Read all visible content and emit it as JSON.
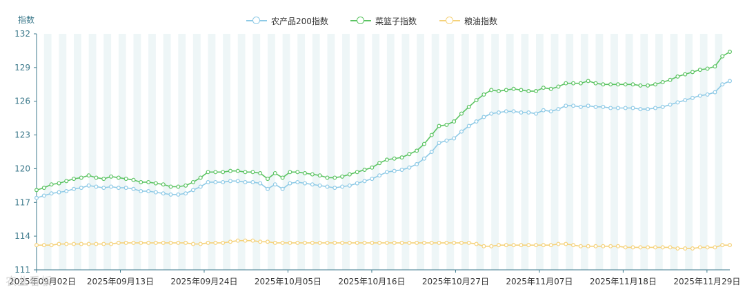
{
  "chart_data": {
    "type": "line",
    "title": "",
    "ylabel": "指数",
    "xlabel": "",
    "ylim": [
      111,
      132
    ],
    "yticks": [
      111,
      114,
      117,
      120,
      123,
      126,
      129,
      132
    ],
    "x_start": "2025年09月02日",
    "x_end": "2025年12月02日",
    "xtick_labels": [
      "2025年09月02日",
      "2025年09月13日",
      "2025年09月24日",
      "2025年10月05日",
      "2025年10月16日",
      "2025年10月27日",
      "2025年11月07日",
      "2025年11月18日",
      "2025年11月29日"
    ],
    "grid": "alternating vertical bands",
    "legend_position": "top-center",
    "series": [
      {
        "name": "农产品200指数",
        "color": "#8ecae6",
        "values": [
          117.4,
          117.6,
          117.8,
          117.9,
          118.0,
          118.2,
          118.3,
          118.5,
          118.4,
          118.3,
          118.4,
          118.3,
          118.3,
          118.2,
          118.0,
          118.0,
          117.9,
          117.8,
          117.7,
          117.7,
          117.8,
          118.1,
          118.4,
          118.8,
          118.8,
          118.8,
          118.9,
          118.9,
          118.8,
          118.8,
          118.7,
          118.2,
          118.6,
          118.2,
          118.7,
          118.8,
          118.7,
          118.6,
          118.5,
          118.4,
          118.3,
          118.4,
          118.5,
          118.7,
          118.9,
          119.1,
          119.4,
          119.7,
          119.8,
          119.9,
          120.1,
          120.4,
          120.9,
          121.5,
          122.3,
          122.5,
          122.7,
          123.3,
          123.8,
          124.2,
          124.6,
          124.9,
          125.0,
          125.1,
          125.1,
          125.0,
          125.0,
          124.9,
          125.2,
          125.1,
          125.3,
          125.6,
          125.6,
          125.5,
          125.6,
          125.5,
          125.5,
          125.4,
          125.4,
          125.4,
          125.4,
          125.3,
          125.3,
          125.4,
          125.5,
          125.7,
          125.9,
          126.1,
          126.3,
          126.5,
          126.6,
          126.8,
          127.5,
          127.8
        ]
      },
      {
        "name": "菜篮子指数",
        "color": "#5cc463",
        "values": [
          118.1,
          118.3,
          118.6,
          118.7,
          118.9,
          119.1,
          119.2,
          119.4,
          119.2,
          119.1,
          119.3,
          119.2,
          119.1,
          119.0,
          118.8,
          118.8,
          118.7,
          118.6,
          118.4,
          118.4,
          118.5,
          118.8,
          119.2,
          119.7,
          119.7,
          119.7,
          119.8,
          119.8,
          119.7,
          119.7,
          119.6,
          119.1,
          119.6,
          119.2,
          119.7,
          119.7,
          119.6,
          119.5,
          119.4,
          119.2,
          119.2,
          119.3,
          119.5,
          119.7,
          119.9,
          120.1,
          120.5,
          120.8,
          120.9,
          121.0,
          121.3,
          121.6,
          122.2,
          123.0,
          123.8,
          123.9,
          124.2,
          124.9,
          125.5,
          126.1,
          126.6,
          127.0,
          126.9,
          127.0,
          127.1,
          127.0,
          126.9,
          126.9,
          127.2,
          127.1,
          127.3,
          127.6,
          127.6,
          127.6,
          127.8,
          127.6,
          127.5,
          127.5,
          127.5,
          127.5,
          127.5,
          127.4,
          127.4,
          127.5,
          127.7,
          127.9,
          128.2,
          128.4,
          128.6,
          128.8,
          128.9,
          129.1,
          130.0,
          130.4
        ]
      },
      {
        "name": "粮油指数",
        "color": "#f5d27a",
        "values": [
          113.2,
          113.2,
          113.2,
          113.3,
          113.3,
          113.3,
          113.3,
          113.3,
          113.3,
          113.3,
          113.3,
          113.4,
          113.4,
          113.4,
          113.4,
          113.4,
          113.4,
          113.4,
          113.4,
          113.4,
          113.4,
          113.3,
          113.3,
          113.4,
          113.4,
          113.4,
          113.5,
          113.6,
          113.6,
          113.6,
          113.5,
          113.5,
          113.4,
          113.4,
          113.4,
          113.4,
          113.4,
          113.4,
          113.4,
          113.4,
          113.4,
          113.4,
          113.4,
          113.4,
          113.4,
          113.4,
          113.4,
          113.4,
          113.4,
          113.4,
          113.4,
          113.4,
          113.4,
          113.4,
          113.4,
          113.4,
          113.4,
          113.4,
          113.4,
          113.3,
          113.1,
          113.1,
          113.2,
          113.2,
          113.2,
          113.2,
          113.2,
          113.2,
          113.2,
          113.2,
          113.3,
          113.3,
          113.2,
          113.1,
          113.1,
          113.1,
          113.1,
          113.1,
          113.1,
          113.0,
          113.0,
          113.0,
          113.0,
          113.0,
          113.0,
          113.0,
          112.9,
          112.9,
          112.9,
          113.0,
          113.0,
          113.0,
          113.2,
          113.2
        ]
      }
    ]
  },
  "watermark": "农业看板"
}
